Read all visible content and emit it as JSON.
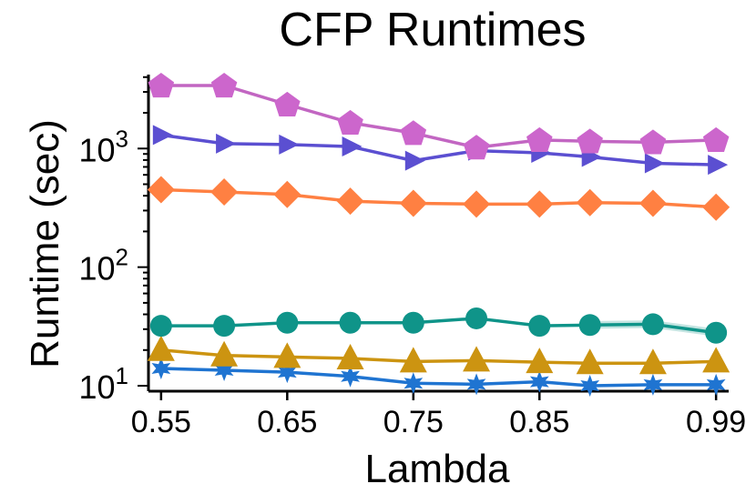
{
  "chart_data": {
    "type": "line",
    "title": "CFP Runtimes",
    "xlabel": "Lambda",
    "ylabel": "Runtime (sec)",
    "yscale": "log",
    "xlim": [
      0.54,
      1.0
    ],
    "ylim": [
      9,
      4200
    ],
    "x_ticks": [
      0.55,
      0.65,
      0.75,
      0.85,
      0.99
    ],
    "x_tick_labels": [
      "0.55",
      "0.65",
      "0.75",
      "0.85",
      "0.99"
    ],
    "y_ticks": [
      {
        "value": 10,
        "base": "10",
        "exp": "1"
      },
      {
        "value": 100,
        "base": "10",
        "exp": "2"
      },
      {
        "value": 1000,
        "base": "10",
        "exp": "3"
      }
    ],
    "x": [
      0.55,
      0.6,
      0.65,
      0.7,
      0.75,
      0.8,
      0.85,
      0.89,
      0.94,
      0.99
    ],
    "series": [
      {
        "name": "pentagon-series",
        "marker": "pentagon",
        "color": "#cc66cc",
        "line_color": "#c266c2",
        "values": [
          3400,
          3400,
          2350,
          1650,
          1350,
          1020,
          1180,
          1150,
          1130,
          1180
        ]
      },
      {
        "name": "triangle-right-series",
        "marker": "triangle-right",
        "color": "#5b4fd1",
        "line_color": "#5b4fd1",
        "values": [
          1300,
          1100,
          1080,
          1040,
          790,
          960,
          920,
          850,
          750,
          730
        ]
      },
      {
        "name": "diamond-series",
        "marker": "diamond",
        "color": "#ff8042",
        "line_color": "#ff8042",
        "values": [
          450,
          430,
          410,
          360,
          345,
          340,
          340,
          350,
          345,
          320
        ]
      },
      {
        "name": "circle-series",
        "marker": "circle",
        "color": "#0f9489",
        "line_color": "#0f9489",
        "values": [
          32,
          32,
          34,
          34,
          34,
          37,
          32,
          32.5,
          33,
          28
        ]
      },
      {
        "name": "triangle-up-series",
        "marker": "triangle-up",
        "color": "#cc9411",
        "line_color": "#cc9411",
        "values": [
          20,
          18,
          17.5,
          17,
          16,
          16.3,
          15.8,
          15.5,
          15.5,
          16
        ]
      },
      {
        "name": "star-series",
        "marker": "star",
        "color": "#1f74d1",
        "line_color": "#1f74d1",
        "values": [
          14,
          13.5,
          13,
          12,
          10.5,
          10.3,
          10.8,
          10,
          10.2,
          10.2
        ]
      }
    ]
  }
}
